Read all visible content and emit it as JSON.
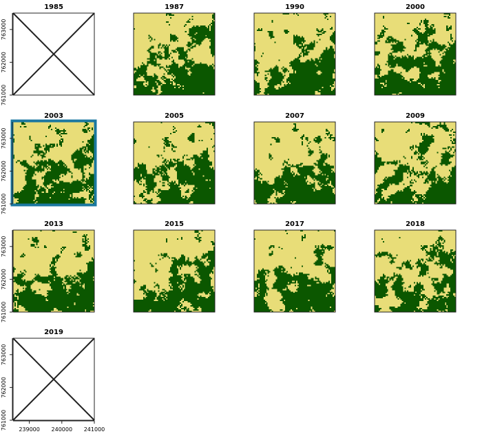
{
  "chart_data": {
    "type": "heatmap",
    "layout": {
      "rows": 4,
      "cols": 4
    },
    "colors": {
      "class_light": "#e8dd78",
      "class_dark": "#0b5700",
      "selected_border": "#1b78a0",
      "frame": "#222222"
    },
    "x_axis": {
      "range": [
        238500,
        241000
      ],
      "ticks": [
        239000,
        240000,
        241000
      ],
      "tick_labels": [
        "239000",
        "240000",
        "241000"
      ]
    },
    "y_axis": {
      "range": [
        761000,
        763500
      ],
      "ticks": [
        761000,
        762000,
        763000
      ],
      "tick_labels": [
        "761000",
        "762000",
        "763000"
      ]
    },
    "panels": [
      {
        "year": "1985",
        "has_data": false,
        "show_y_axis": true,
        "show_x_axis": false,
        "selected": false
      },
      {
        "year": "1987",
        "has_data": true,
        "show_y_axis": false,
        "show_x_axis": false,
        "selected": false,
        "seed": 11,
        "dark_fraction": 0.45
      },
      {
        "year": "1990",
        "has_data": true,
        "show_y_axis": false,
        "show_x_axis": false,
        "selected": false,
        "seed": 23,
        "dark_fraction": 0.4
      },
      {
        "year": "2000",
        "has_data": true,
        "show_y_axis": false,
        "show_x_axis": false,
        "selected": false,
        "seed": 37,
        "dark_fraction": 0.5
      },
      {
        "year": "2003",
        "has_data": true,
        "show_y_axis": true,
        "show_x_axis": false,
        "selected": true,
        "seed": 41,
        "dark_fraction": 0.42
      },
      {
        "year": "2005",
        "has_data": true,
        "show_y_axis": false,
        "show_x_axis": false,
        "selected": false,
        "seed": 53,
        "dark_fraction": 0.4
      },
      {
        "year": "2007",
        "has_data": true,
        "show_y_axis": false,
        "show_x_axis": false,
        "selected": false,
        "seed": 67,
        "dark_fraction": 0.4
      },
      {
        "year": "2009",
        "has_data": true,
        "show_y_axis": false,
        "show_x_axis": false,
        "selected": false,
        "seed": 71,
        "dark_fraction": 0.38
      },
      {
        "year": "2013",
        "has_data": true,
        "show_y_axis": true,
        "show_x_axis": false,
        "selected": false,
        "seed": 83,
        "dark_fraction": 0.42
      },
      {
        "year": "2015",
        "has_data": true,
        "show_y_axis": false,
        "show_x_axis": false,
        "selected": false,
        "seed": 97,
        "dark_fraction": 0.4
      },
      {
        "year": "2017",
        "has_data": true,
        "show_y_axis": false,
        "show_x_axis": false,
        "selected": false,
        "seed": 101,
        "dark_fraction": 0.4
      },
      {
        "year": "2018",
        "has_data": true,
        "show_y_axis": false,
        "show_x_axis": false,
        "selected": false,
        "seed": 113,
        "dark_fraction": 0.38
      },
      {
        "year": "2019",
        "has_data": false,
        "show_y_axis": true,
        "show_x_axis": true,
        "selected": false
      }
    ]
  }
}
